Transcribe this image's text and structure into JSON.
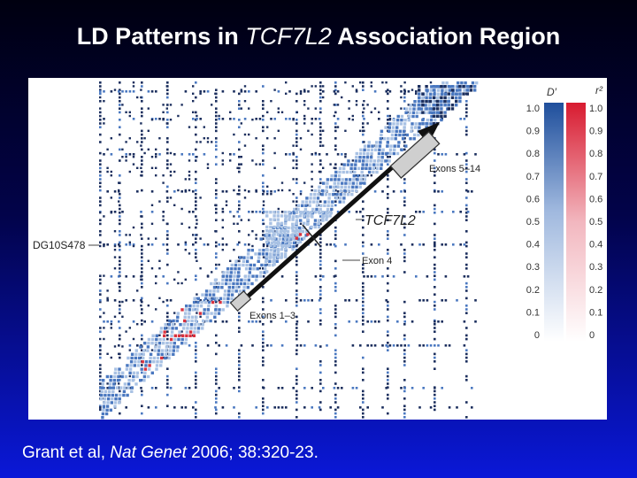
{
  "slide": {
    "title_prefix": "LD Patterns in ",
    "title_gene": "TCF7L2",
    "title_suffix": " Association Region",
    "citation_authors": "Grant et al, ",
    "citation_journal": "Nat Genet",
    "citation_rest": " 2006; 38:320-23."
  },
  "figure": {
    "marker_label": "DG10S478",
    "gene_label": "TCF7L2",
    "exon_labels": {
      "exons_5_14": "Exons 5–14",
      "exon_4": "Exon 4",
      "exons_1_3": "Exons 1–3"
    },
    "legend": {
      "dprime_title": "D′",
      "r2_title": "r²",
      "ticks": [
        "1.0",
        "0.9",
        "0.8",
        "0.7",
        "0.6",
        "0.5",
        "0.4",
        "0.3",
        "0.2",
        "0.1",
        "0"
      ],
      "dprime_color": "#3a6fb5",
      "r2_color": "#e0283a"
    },
    "colors": {
      "background": "#ffffff",
      "ld_dark": "#1c2f5e",
      "ld_blue": "#4a78c0",
      "ld_light_blue": "#a9c2e4",
      "ld_red": "#d8323f",
      "arrow": "#111111",
      "gene_box": "#cfcfcf"
    }
  }
}
